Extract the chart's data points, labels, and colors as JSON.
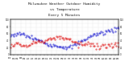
{
  "title": "Milwaukee Weather Outdoor Humidity vs Temperature Every 5 Minutes",
  "title_fontsize": 3.2,
  "background_color": "#ffffff",
  "grid_color": "#bbbbbb",
  "blue_color": "#0000cc",
  "red_color": "#dd0000",
  "ylim": [
    0,
    100
  ],
  "tick_fontsize": 1.8,
  "n_points": 100
}
